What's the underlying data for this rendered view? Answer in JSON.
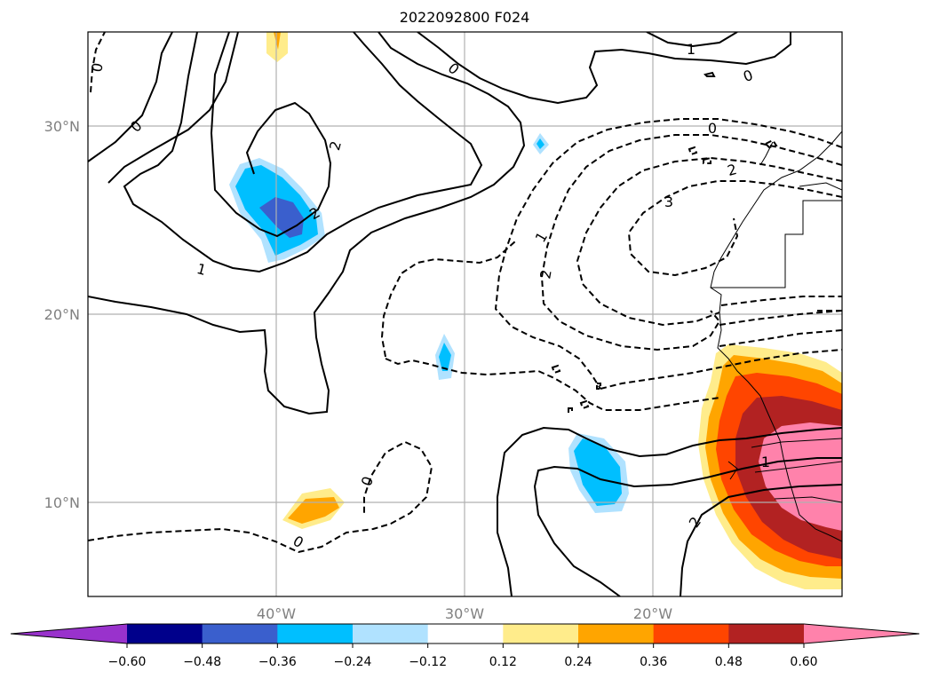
{
  "title": "2022092800 F024",
  "axes": {
    "lat_labels": [
      "30°N",
      "20°N",
      "10°N"
    ],
    "lon_labels": [
      "40°W",
      "30°W",
      "20°W"
    ]
  },
  "colorbar": {
    "ticks": [
      "−0.60",
      "−0.48",
      "−0.36",
      "−0.24",
      "−0.12",
      "0.12",
      "0.24",
      "0.36",
      "0.48",
      "0.60"
    ],
    "colors": [
      "#9932cc",
      "#00008b",
      "#3a5fcd",
      "#00bfff",
      "#b0e2ff",
      "#ffffff",
      "#ffec8b",
      "#ffa500",
      "#ff4500",
      "#b22222",
      "#ff82ab"
    ]
  },
  "contour_labels": [
    {
      "text": "0"
    },
    {
      "text": "0"
    },
    {
      "text": "2"
    },
    {
      "text": "2"
    },
    {
      "text": "1"
    },
    {
      "text": "0"
    },
    {
      "text": "1"
    },
    {
      "text": "0"
    },
    {
      "text": "0"
    },
    {
      "text": "2"
    },
    {
      "text": "3"
    },
    {
      "text": "1"
    },
    {
      "text": "2"
    },
    {
      "text": "0"
    },
    {
      "text": "0"
    },
    {
      "text": "1"
    },
    {
      "text": "2"
    }
  ]
}
